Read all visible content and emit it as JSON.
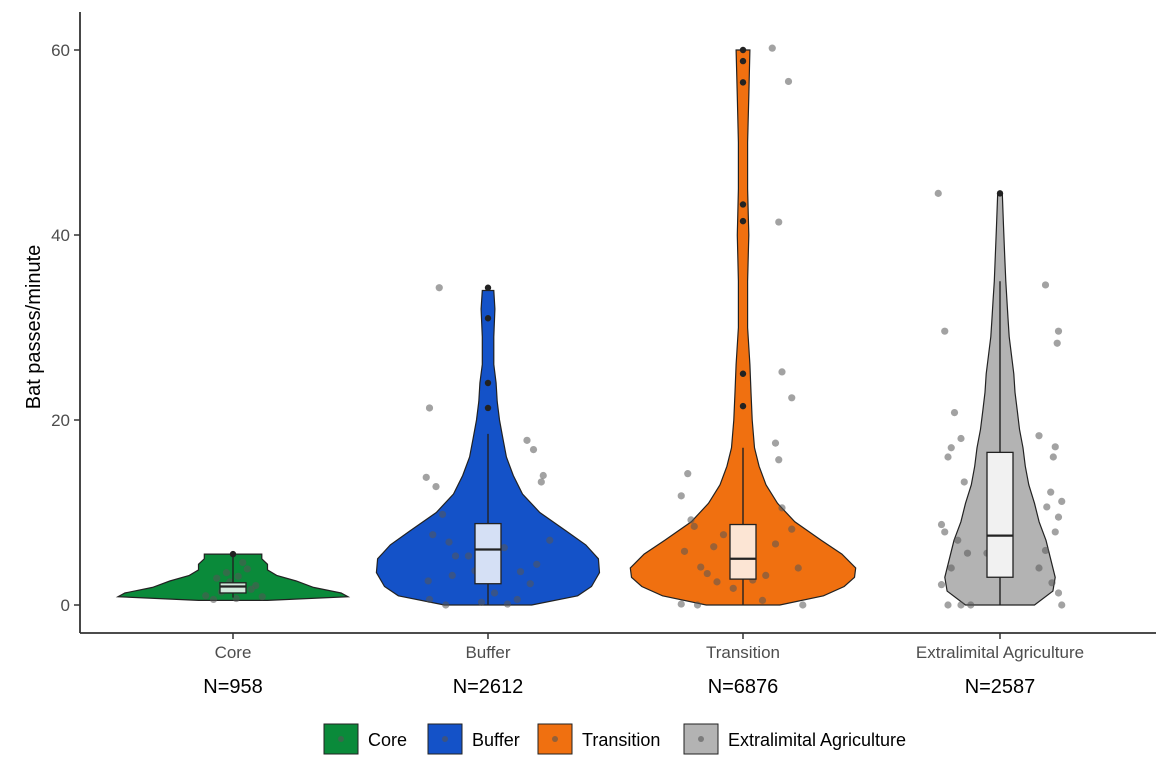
{
  "chart_data": {
    "type": "violin",
    "ylabel": "Bat passes/minute",
    "xlabel": "",
    "ylim": [
      -3,
      62
    ],
    "yticks": [
      0,
      20,
      40,
      60
    ],
    "grid": false,
    "legend_position": "bottom",
    "categories": [
      "Core",
      "Buffer",
      "Transition",
      "Extralimital Agriculture"
    ],
    "counts": [
      "N=958",
      "N=2612",
      "N=6876",
      "N=2587"
    ],
    "series": [
      {
        "name": "Core",
        "color": "#0a8a3a",
        "box": {
          "q1": 1.3,
          "median": 2.0,
          "q3": 2.4,
          "whisker_low": 0.8,
          "whisker_high": 5.5
        },
        "outliers": [
          5.5
        ],
        "violin": [
          [
            0.5,
            0.3
          ],
          [
            0.9,
            1.0
          ],
          [
            1.3,
            0.94
          ],
          [
            1.9,
            0.7
          ],
          [
            2.6,
            0.55
          ],
          [
            3.2,
            0.38
          ],
          [
            3.8,
            0.3
          ],
          [
            4.4,
            0.3
          ],
          [
            5.0,
            0.25
          ],
          [
            5.5,
            0.25
          ]
        ],
        "jitter": [
          [
            -0.3,
            0.6
          ],
          [
            -0.18,
            1.4
          ],
          [
            -0.05,
            2.5
          ],
          [
            0.08,
            3.1
          ],
          [
            0.22,
            3.9
          ],
          [
            0.35,
            2.1
          ],
          [
            -0.42,
            1.0
          ],
          [
            0.45,
            0.9
          ],
          [
            -0.25,
            2.9
          ],
          [
            0.05,
            0.7
          ],
          [
            0.15,
            4.6
          ],
          [
            -0.1,
            3.5
          ],
          [
            0.28,
            1.7
          ]
        ]
      },
      {
        "name": "Buffer",
        "color": "#1452c8",
        "box": {
          "q1": 2.3,
          "median": 6.0,
          "q3": 8.8,
          "whisker_low": 0.0,
          "whisker_high": 18.5
        },
        "outliers": [
          21.3,
          24.0,
          31.0,
          34.3
        ],
        "violin": [
          [
            0.0,
            0.38
          ],
          [
            1.0,
            0.78
          ],
          [
            2.0,
            0.9
          ],
          [
            3.5,
            0.97
          ],
          [
            5.0,
            0.96
          ],
          [
            6.5,
            0.85
          ],
          [
            8.0,
            0.68
          ],
          [
            10.0,
            0.45
          ],
          [
            12.0,
            0.3
          ],
          [
            14.0,
            0.22
          ],
          [
            16.0,
            0.16
          ],
          [
            18.0,
            0.13
          ],
          [
            20.0,
            0.1
          ],
          [
            22.0,
            0.08
          ],
          [
            24.0,
            0.07
          ],
          [
            26.0,
            0.05
          ],
          [
            29.0,
            0.05
          ],
          [
            32.0,
            0.06
          ],
          [
            34.0,
            0.05
          ]
        ],
        "jitter": [
          [
            -0.9,
            21.3
          ],
          [
            -0.75,
            34.3
          ],
          [
            -0.95,
            13.8
          ],
          [
            -0.8,
            12.8
          ],
          [
            -0.7,
            9.8
          ],
          [
            -0.85,
            7.6
          ],
          [
            -0.6,
            6.8
          ],
          [
            -0.5,
            5.3
          ],
          [
            -0.92,
            2.6
          ],
          [
            -0.55,
            3.2
          ],
          [
            -0.65,
            0.0
          ],
          [
            -0.9,
            0.6
          ],
          [
            0.6,
            17.8
          ],
          [
            0.7,
            16.8
          ],
          [
            0.85,
            14.0
          ],
          [
            0.82,
            13.3
          ],
          [
            0.95,
            7.0
          ],
          [
            0.75,
            4.4
          ],
          [
            0.65,
            2.3
          ],
          [
            0.5,
            3.6
          ],
          [
            0.45,
            0.6
          ],
          [
            -0.3,
            5.3
          ],
          [
            -0.2,
            3.7
          ],
          [
            0.25,
            6.2
          ],
          [
            0.1,
            1.3
          ],
          [
            -0.1,
            0.3
          ],
          [
            0.3,
            0.1
          ]
        ]
      },
      {
        "name": "Transition",
        "color": "#f07010",
        "box": {
          "q1": 2.8,
          "median": 5.0,
          "q3": 8.7,
          "whisker_low": 0.0,
          "whisker_high": 17.0
        },
        "outliers": [
          21.5,
          25.0,
          41.5,
          43.3,
          56.5,
          58.8,
          60.0
        ],
        "violin": [
          [
            0.0,
            0.32
          ],
          [
            1.0,
            0.7
          ],
          [
            2.0,
            0.88
          ],
          [
            3.0,
            0.97
          ],
          [
            4.0,
            0.98
          ],
          [
            5.5,
            0.86
          ],
          [
            7.0,
            0.68
          ],
          [
            9.0,
            0.45
          ],
          [
            11.0,
            0.3
          ],
          [
            13.0,
            0.2
          ],
          [
            15.0,
            0.14
          ],
          [
            17.0,
            0.1
          ],
          [
            20.0,
            0.08
          ],
          [
            23.0,
            0.07
          ],
          [
            26.0,
            0.06
          ],
          [
            30.0,
            0.04
          ],
          [
            35.0,
            0.04
          ],
          [
            40.0,
            0.05
          ],
          [
            45.0,
            0.04
          ],
          [
            50.0,
            0.04
          ],
          [
            55.0,
            0.05
          ],
          [
            60.0,
            0.06
          ]
        ],
        "jitter": [
          [
            -0.95,
            11.8
          ],
          [
            -0.85,
            14.2
          ],
          [
            -0.8,
            9.2
          ],
          [
            -0.75,
            8.5
          ],
          [
            -0.9,
            5.8
          ],
          [
            -0.65,
            4.1
          ],
          [
            -0.55,
            3.4
          ],
          [
            -0.95,
            0.1
          ],
          [
            -0.7,
            0.0
          ],
          [
            -0.4,
            2.5
          ],
          [
            -0.3,
            7.6
          ],
          [
            -0.45,
            6.3
          ],
          [
            0.55,
            41.4
          ],
          [
            0.45,
            60.2
          ],
          [
            0.7,
            56.6
          ],
          [
            0.6,
            25.2
          ],
          [
            0.75,
            22.4
          ],
          [
            0.5,
            17.5
          ],
          [
            0.55,
            15.7
          ],
          [
            0.6,
            10.5
          ],
          [
            0.75,
            8.2
          ],
          [
            0.85,
            4.0
          ],
          [
            0.92,
            0.0
          ],
          [
            0.5,
            6.6
          ],
          [
            0.35,
            3.2
          ],
          [
            0.3,
            0.5
          ],
          [
            -0.15,
            1.8
          ],
          [
            0.15,
            2.7
          ]
        ]
      },
      {
        "name": "Extralimital Agriculture",
        "color": "#b3b3b3",
        "box": {
          "q1": 3.0,
          "median": 7.5,
          "q3": 16.5,
          "whisker_low": 0.0,
          "whisker_high": 35.0
        },
        "outliers": [
          44.5
        ],
        "violin": [
          [
            0.0,
            0.3
          ],
          [
            1.5,
            0.46
          ],
          [
            3.0,
            0.48
          ],
          [
            5.0,
            0.44
          ],
          [
            7.0,
            0.4
          ],
          [
            9.0,
            0.34
          ],
          [
            11.0,
            0.3
          ],
          [
            13.0,
            0.25
          ],
          [
            15.0,
            0.22
          ],
          [
            17.0,
            0.2
          ],
          [
            19.0,
            0.17
          ],
          [
            21.0,
            0.15
          ],
          [
            23.0,
            0.13
          ],
          [
            25.0,
            0.12
          ],
          [
            27.0,
            0.1
          ],
          [
            29.0,
            0.08
          ],
          [
            31.0,
            0.07
          ],
          [
            33.0,
            0.06
          ],
          [
            35.0,
            0.05
          ],
          [
            38.0,
            0.04
          ],
          [
            41.0,
            0.03
          ],
          [
            44.5,
            0.02
          ]
        ],
        "jitter": [
          [
            -0.95,
            44.5
          ],
          [
            -0.85,
            29.6
          ],
          [
            -0.7,
            20.8
          ],
          [
            -0.6,
            18.0
          ],
          [
            -0.75,
            17.0
          ],
          [
            -0.8,
            16.0
          ],
          [
            -0.55,
            13.3
          ],
          [
            -0.9,
            8.7
          ],
          [
            -0.85,
            7.9
          ],
          [
            -0.65,
            7.0
          ],
          [
            -0.5,
            5.6
          ],
          [
            -0.75,
            4.0
          ],
          [
            -0.9,
            2.2
          ],
          [
            -0.6,
            0.0
          ],
          [
            -0.8,
            0.0
          ],
          [
            -0.45,
            0.0
          ],
          [
            0.7,
            34.6
          ],
          [
            0.9,
            29.6
          ],
          [
            0.88,
            28.3
          ],
          [
            0.6,
            18.3
          ],
          [
            0.85,
            17.1
          ],
          [
            0.82,
            16.0
          ],
          [
            0.78,
            12.2
          ],
          [
            0.95,
            11.2
          ],
          [
            0.72,
            10.6
          ],
          [
            0.9,
            9.5
          ],
          [
            0.85,
            7.9
          ],
          [
            0.7,
            5.9
          ],
          [
            0.6,
            4.0
          ],
          [
            0.8,
            2.4
          ],
          [
            0.9,
            1.3
          ],
          [
            0.95,
            0.0
          ],
          [
            -0.2,
            5.6
          ],
          [
            0.15,
            6.2
          ],
          [
            -0.1,
            9.9
          ]
        ]
      }
    ]
  },
  "legend": {
    "items": [
      {
        "label": "Core",
        "color": "#0a8a3a"
      },
      {
        "label": "Buffer",
        "color": "#1452c8"
      },
      {
        "label": "Transition",
        "color": "#f07010"
      },
      {
        "label": "Extralimital Agriculture",
        "color": "#b3b3b3"
      }
    ]
  }
}
